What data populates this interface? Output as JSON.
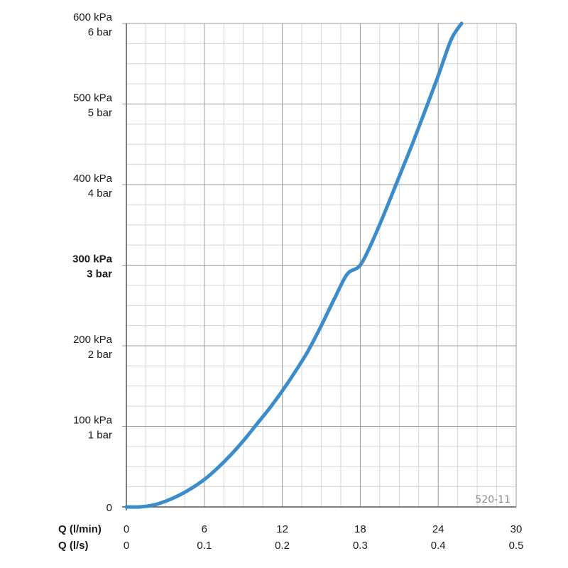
{
  "chart_data": {
    "type": "line",
    "code_label": "520-11",
    "x_axis": {
      "name": "Q (l/min)",
      "ticks": [
        0,
        6,
        12,
        18,
        24,
        30
      ],
      "lim": [
        0,
        30
      ]
    },
    "x_axis_secondary": {
      "name": "Q (l/s)",
      "ticks": [
        "0",
        "0.1",
        "0.2",
        "0.3",
        "0.4",
        "0.5"
      ]
    },
    "y_axis": {
      "lim": [
        0,
        600
      ],
      "ticks": [
        {
          "value": 0,
          "line1": "0",
          "line2": "",
          "bold": false
        },
        {
          "value": 100,
          "line1": "100 kPa",
          "line2": "1 bar",
          "bold": false
        },
        {
          "value": 200,
          "line1": "200 kPa",
          "line2": "2 bar",
          "bold": false
        },
        {
          "value": 300,
          "line1": "300 kPa",
          "line2": "3 bar",
          "bold": true
        },
        {
          "value": 400,
          "line1": "400 kPa",
          "line2": "4 bar",
          "bold": false
        },
        {
          "value": 500,
          "line1": "500 kPa",
          "line2": "5 bar",
          "bold": false
        },
        {
          "value": 600,
          "line1": "600 kPa",
          "line2": "6 bar",
          "bold": false
        }
      ]
    },
    "grid": true,
    "colors": {
      "curve": "#3a8ccb",
      "major_grid": "#9a9a9a",
      "minor_grid": "#d6d6d6"
    },
    "series": [
      {
        "x": [
          0,
          1,
          2,
          3,
          4,
          5,
          6,
          7,
          8,
          9,
          10,
          11,
          12,
          13,
          14,
          15,
          16,
          17,
          18,
          19,
          20,
          21,
          22,
          23,
          24,
          25,
          25.8
        ],
        "y": [
          0,
          0,
          2,
          7,
          14,
          23,
          34,
          48,
          64,
          82,
          102,
          122,
          144,
          168,
          194,
          225,
          258,
          289,
          300,
          332,
          370,
          410,
          450,
          492,
          535,
          580,
          600
        ]
      }
    ]
  }
}
